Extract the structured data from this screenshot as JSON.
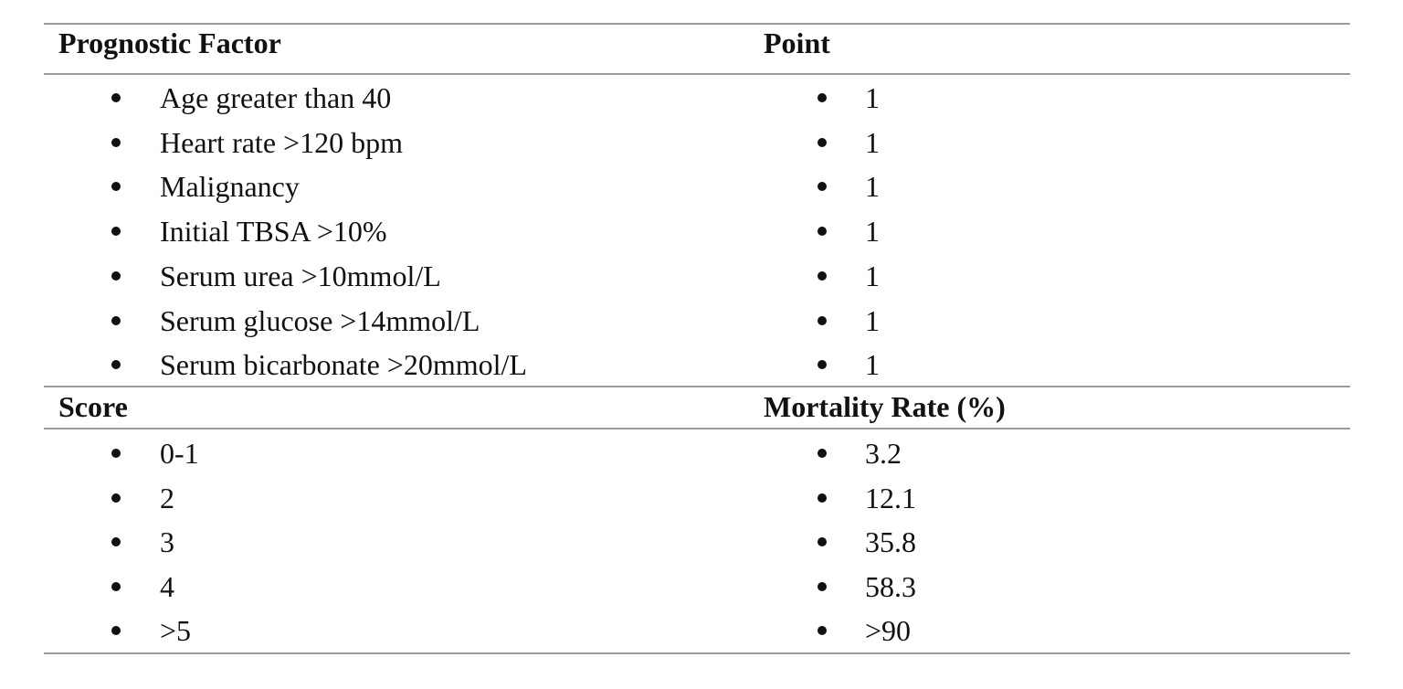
{
  "sections": [
    {
      "header": [
        "Prognostic Factor",
        "Point"
      ],
      "rows": [
        [
          "Age greater than 40",
          "1"
        ],
        [
          "Heart rate >120 bpm",
          "1"
        ],
        [
          "Malignancy",
          "1"
        ],
        [
          "Initial TBSA >10%",
          "1"
        ],
        [
          "Serum urea >10mmol/L",
          "1"
        ],
        [
          "Serum glucose >14mmol/L",
          "1"
        ],
        [
          "Serum bicarbonate >20mmol/L",
          "1"
        ]
      ]
    },
    {
      "header": [
        "Score",
        "Mortality Rate (%)"
      ],
      "rows": [
        [
          "0-1",
          "3.2"
        ],
        [
          "2",
          "12.1"
        ],
        [
          "3",
          "35.8"
        ],
        [
          "4",
          "58.3"
        ],
        [
          ">5",
          ">90"
        ]
      ]
    }
  ]
}
